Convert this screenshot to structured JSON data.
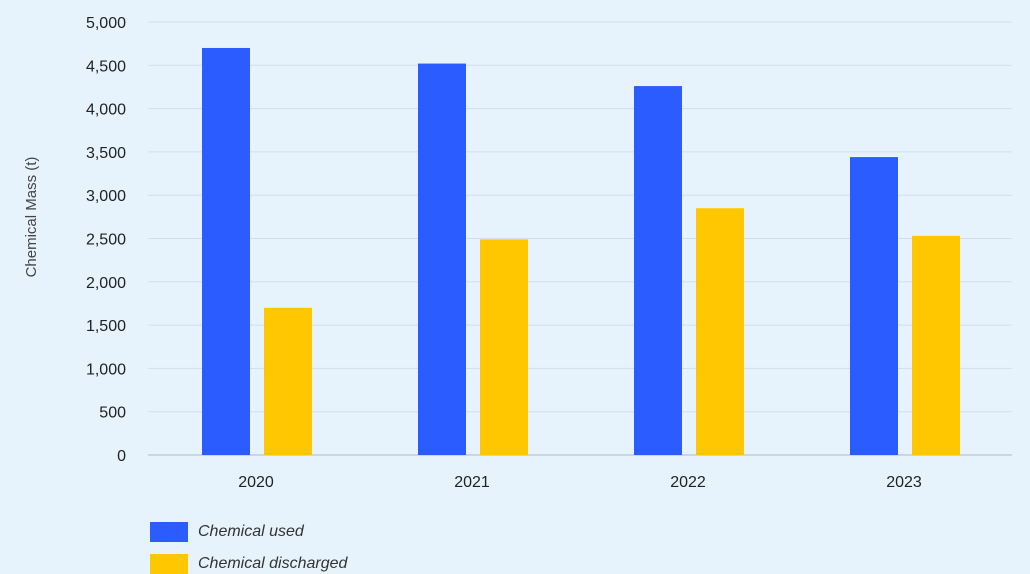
{
  "chart_data": {
    "type": "bar",
    "categories": [
      "2020",
      "2021",
      "2022",
      "2023"
    ],
    "series": [
      {
        "name": "Chemical used",
        "color": "#2b5cff",
        "values": [
          4700,
          4520,
          4260,
          3440
        ]
      },
      {
        "name": "Chemical discharged",
        "color": "#ffc700",
        "values": [
          1700,
          2490,
          2850,
          2530
        ]
      }
    ],
    "title": "",
    "xlabel": "",
    "ylabel": "Chemical Mass (t)",
    "ylim": [
      0,
      5000
    ],
    "yticks": [
      0,
      500,
      1000,
      1500,
      2000,
      2500,
      3000,
      3500,
      4000,
      4500,
      5000
    ],
    "ytick_labels": [
      "0",
      "500",
      "1,000",
      "1,500",
      "2,000",
      "2,500",
      "3,000",
      "3,500",
      "4,000",
      "4,500",
      "5,000"
    ],
    "grid": true,
    "legend_position": "bottom-left",
    "background_color": "#e6f3fc",
    "grid_color": "#d2dfea"
  }
}
